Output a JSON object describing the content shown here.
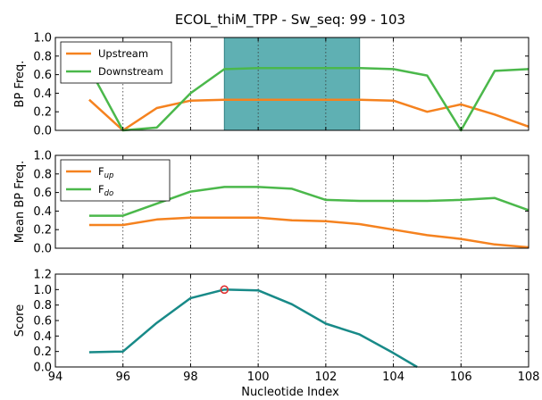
{
  "chart_data": {
    "type": "line",
    "title": "ECOL_thiM_TPP - Sw_seq: 99 - 103",
    "xlabel": "Nucleotide Index",
    "xlim": [
      94,
      108
    ],
    "x_ticks": [
      94,
      96,
      98,
      100,
      102,
      104,
      106,
      108
    ],
    "x_tick_labels": [
      "94",
      "96",
      "98",
      "100",
      "102",
      "104",
      "106",
      "108"
    ],
    "colors": {
      "up": "#f5821f",
      "down": "#4bb84b",
      "score": "#188a88",
      "highlight": "#5fb0b3",
      "marker": "#e03030"
    },
    "panels": [
      {
        "key": "bp",
        "ylabel": "BP Freq.",
        "ylim": [
          0,
          1
        ],
        "y_ticks": [
          0,
          0.2,
          0.4,
          0.6,
          0.8,
          1.0
        ],
        "y_tick_labels": [
          "0.0",
          "0.2",
          "0.4",
          "0.6",
          "0.8",
          "1.0"
        ],
        "highlight": [
          99,
          103
        ],
        "legend": {
          "position": "upper-left"
        },
        "series": [
          {
            "name": "Upstream",
            "color_key": "up",
            "x": [
              95,
              96,
              97,
              98,
              99,
              100,
              101,
              102,
              103,
              104,
              105,
              106,
              107,
              108
            ],
            "values": [
              0.33,
              0.0,
              0.24,
              0.32,
              0.33,
              0.33,
              0.33,
              0.33,
              0.33,
              0.32,
              0.2,
              0.28,
              0.17,
              0.04
            ]
          },
          {
            "name": "Downstream",
            "color_key": "down",
            "x": [
              95,
              96,
              97,
              98,
              99,
              100,
              101,
              102,
              103,
              104,
              105,
              106,
              107,
              108
            ],
            "values": [
              0.67,
              0.0,
              0.03,
              0.4,
              0.66,
              0.67,
              0.67,
              0.67,
              0.67,
              0.66,
              0.59,
              0.0,
              0.64,
              0.66
            ]
          }
        ]
      },
      {
        "key": "mean",
        "ylabel": "Mean BP Freq.",
        "ylim": [
          0,
          1
        ],
        "y_ticks": [
          0,
          0.2,
          0.4,
          0.6,
          0.8,
          1.0
        ],
        "y_tick_labels": [
          "0.0",
          "0.2",
          "0.4",
          "0.6",
          "0.8",
          "1.0"
        ],
        "legend": {
          "position": "upper-left"
        },
        "series": [
          {
            "name": "F",
            "subscript": "up",
            "color_key": "up",
            "x": [
              95,
              96,
              97,
              98,
              99,
              100,
              101,
              102,
              103,
              104,
              105,
              106,
              107,
              108
            ],
            "values": [
              0.25,
              0.25,
              0.31,
              0.33,
              0.33,
              0.33,
              0.3,
              0.29,
              0.26,
              0.2,
              0.14,
              0.1,
              0.04,
              0.01
            ]
          },
          {
            "name": "F",
            "subscript": "do",
            "color_key": "down",
            "x": [
              95,
              96,
              97,
              98,
              99,
              100,
              101,
              102,
              103,
              104,
              105,
              106,
              107,
              108
            ],
            "values": [
              0.35,
              0.35,
              0.48,
              0.61,
              0.66,
              0.66,
              0.64,
              0.52,
              0.51,
              0.51,
              0.51,
              0.52,
              0.54,
              0.41
            ]
          }
        ]
      },
      {
        "key": "score",
        "ylabel": "Score",
        "ylim": [
          0,
          1.2
        ],
        "y_ticks": [
          0,
          0.2,
          0.4,
          0.6,
          0.8,
          1.0,
          1.2
        ],
        "y_tick_labels": [
          "0.0",
          "0.2",
          "0.4",
          "0.6",
          "0.8",
          "1.0",
          "1.2"
        ],
        "series": [
          {
            "name": "",
            "color_key": "score",
            "x": [
              95,
              96,
              97,
              98,
              99,
              100,
              101,
              102,
              103,
              104,
              104.7
            ],
            "values": [
              0.19,
              0.2,
              0.57,
              0.89,
              1.0,
              0.99,
              0.81,
              0.56,
              0.42,
              0.18,
              0.0
            ]
          }
        ],
        "marker": {
          "x": 99,
          "y": 1.0
        }
      }
    ]
  }
}
